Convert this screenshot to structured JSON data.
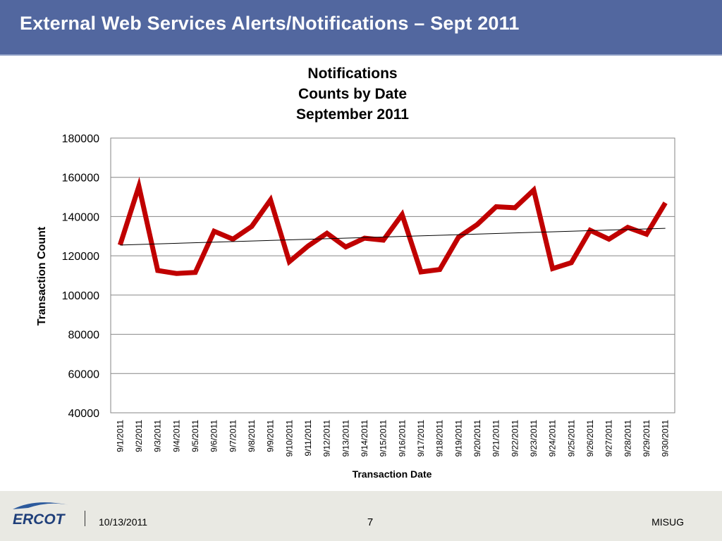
{
  "slide": {
    "title": "External Web Services Alerts/Notifications – Sept 2011"
  },
  "footer": {
    "logo_text": "ERCOT",
    "date": "10/13/2011",
    "page": "7",
    "org": "MISUG"
  },
  "colors": {
    "header_bg": "#52679f",
    "series_line": "#c00000",
    "trendline": "#000000",
    "footer_bg": "#e9e9e3",
    "logo_blue": "#1f3f7a"
  },
  "chart_data": {
    "type": "line",
    "title_lines": [
      "Notifications",
      "Counts by Date",
      "September 2011"
    ],
    "xlabel": "Transaction Date",
    "ylabel": "Transaction Count",
    "ylim": [
      40000,
      180000
    ],
    "yticks": [
      40000,
      60000,
      80000,
      100000,
      120000,
      140000,
      160000,
      180000
    ],
    "grid": true,
    "legend": "none",
    "categories": [
      "9/1/2011",
      "9/2/2011",
      "9/3/2011",
      "9/4/2011",
      "9/5/2011",
      "9/6/2011",
      "9/7/2011",
      "9/8/2011",
      "9/9/2011",
      "9/10/2011",
      "9/11/2011",
      "9/12/2011",
      "9/13/2011",
      "9/14/2011",
      "9/15/2011",
      "9/16/2011",
      "9/17/2011",
      "9/18/2011",
      "9/19/2011",
      "9/20/2011",
      "9/21/2011",
      "9/22/2011",
      "9/23/2011",
      "9/24/2011",
      "9/25/2011",
      "9/26/2011",
      "9/27/2011",
      "9/28/2011",
      "9/29/2011",
      "9/30/2011"
    ],
    "series": [
      {
        "values": [
          125500,
          155500,
          112500,
          111000,
          111500,
          132500,
          128500,
          135000,
          148500,
          117000,
          125000,
          131500,
          124500,
          129000,
          128000,
          141000,
          111800,
          113000,
          129500,
          136000,
          145000,
          144500,
          153500,
          113500,
          116500,
          133000,
          128500,
          134500,
          131000,
          147000
        ]
      }
    ],
    "trendline": {
      "type": "linear",
      "values": [
        125500,
        134000
      ]
    }
  }
}
